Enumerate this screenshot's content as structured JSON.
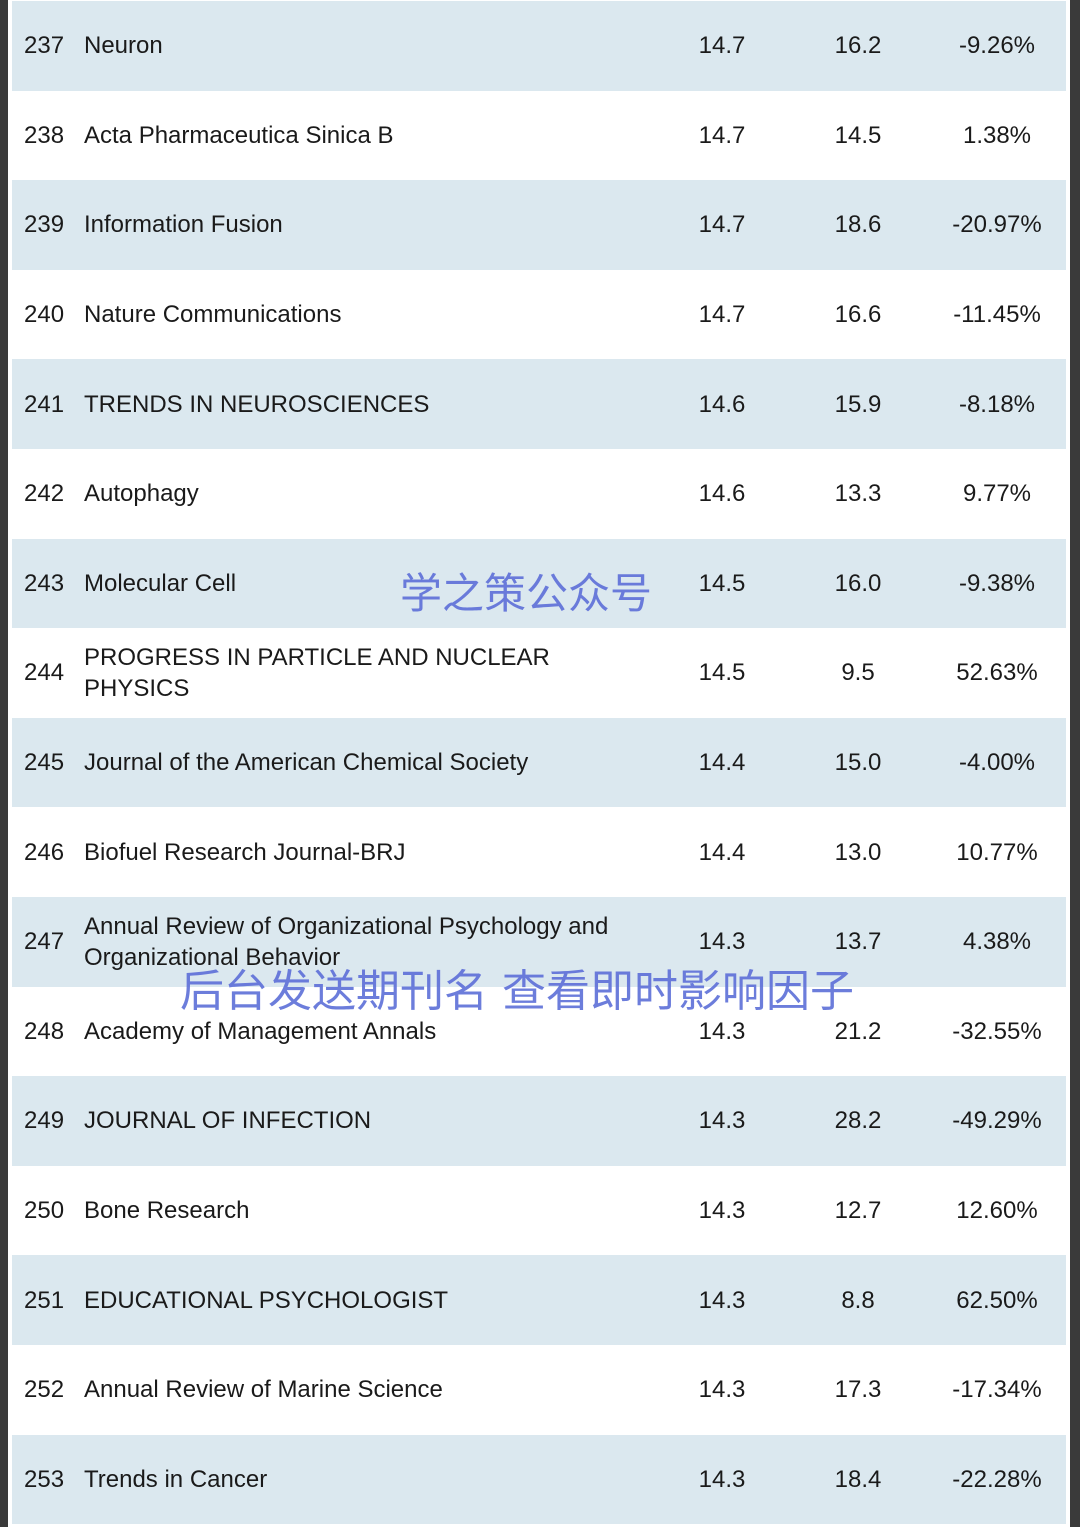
{
  "table": {
    "rows": [
      [
        "237",
        "Neuron",
        "14.7",
        "16.2",
        "-9.26%"
      ],
      [
        "238",
        "Acta Pharmaceutica Sinica B",
        "14.7",
        "14.5",
        "1.38%"
      ],
      [
        "239",
        "Information Fusion",
        "14.7",
        "18.6",
        "-20.97%"
      ],
      [
        "240",
        "Nature Communications",
        "14.7",
        "16.6",
        "-11.45%"
      ],
      [
        "241",
        "TRENDS IN NEUROSCIENCES",
        "14.6",
        "15.9",
        "-8.18%"
      ],
      [
        "242",
        "Autophagy",
        "14.6",
        "13.3",
        "9.77%"
      ],
      [
        "243",
        "Molecular Cell",
        "14.5",
        "16.0",
        "-9.38%"
      ],
      [
        "244",
        "PROGRESS IN PARTICLE AND NUCLEAR PHYSICS",
        "14.5",
        "9.5",
        "52.63%"
      ],
      [
        "245",
        "Journal of the American Chemical Society",
        "14.4",
        "15.0",
        "-4.00%"
      ],
      [
        "246",
        "Biofuel Research Journal-BRJ",
        "14.4",
        "13.0",
        "10.77%"
      ],
      [
        "247",
        "Annual Review of Organizational Psychology and Organizational Behavior",
        "14.3",
        "13.7",
        "4.38%"
      ],
      [
        "248",
        "Academy of Management Annals",
        "14.3",
        "21.2",
        "-32.55%"
      ],
      [
        "249",
        "JOURNAL OF INFECTION",
        "14.3",
        "28.2",
        "-49.29%"
      ],
      [
        "250",
        "Bone Research",
        "14.3",
        "12.7",
        "12.60%"
      ],
      [
        "251",
        "EDUCATIONAL PSYCHOLOGIST",
        "14.3",
        "8.8",
        "62.50%"
      ],
      [
        "252",
        "Annual Review of Marine Science",
        "14.3",
        "17.3",
        "-17.34%"
      ],
      [
        "253",
        "Trends in Cancer",
        "14.3",
        "18.4",
        "-22.28%"
      ]
    ]
  },
  "watermarks": [
    "学之策公众号",
    "后台发送期刊名 查看即时影响因子"
  ]
}
